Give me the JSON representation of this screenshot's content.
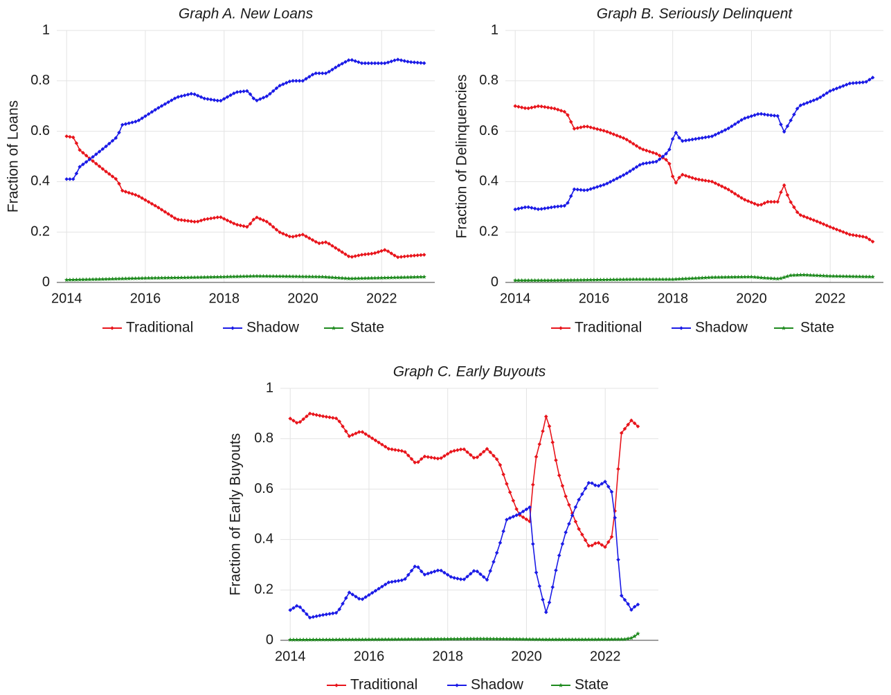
{
  "colors": {
    "Traditional": "#e8141b",
    "Shadow": "#1a1ae6",
    "State": "#1e8a1e"
  },
  "chart_data": [
    {
      "id": "A",
      "type": "line",
      "title": "Graph A. New Loans",
      "xlabel": "",
      "ylabel": "Fraction of Loans",
      "xlim": [
        2013.75,
        2023.35
      ],
      "ylim": [
        0,
        1
      ],
      "xticks": [
        "2014",
        "2016",
        "2018",
        "2020",
        "2022"
      ],
      "yticks": [
        "0",
        "0.2",
        "0.4",
        "0.6",
        "0.8",
        "1"
      ],
      "legend": "bottom",
      "x_start": 2014.0,
      "x_step": 0.0833,
      "series": [
        {
          "name": "Traditional",
          "marker": "diamond",
          "anchors": [
            [
              2014.0,
              0.58
            ],
            [
              2014.2,
              0.575
            ],
            [
              2014.3,
              0.53
            ],
            [
              2014.6,
              0.49
            ],
            [
              2015.0,
              0.44
            ],
            [
              2015.3,
              0.405
            ],
            [
              2015.4,
              0.365
            ],
            [
              2015.8,
              0.345
            ],
            [
              2016.3,
              0.3
            ],
            [
              2016.8,
              0.25
            ],
            [
              2017.3,
              0.24
            ],
            [
              2017.5,
              0.25
            ],
            [
              2017.9,
              0.26
            ],
            [
              2018.3,
              0.23
            ],
            [
              2018.6,
              0.22
            ],
            [
              2018.8,
              0.26
            ],
            [
              2019.1,
              0.24
            ],
            [
              2019.4,
              0.2
            ],
            [
              2019.7,
              0.18
            ],
            [
              2020.0,
              0.19
            ],
            [
              2020.4,
              0.155
            ],
            [
              2020.6,
              0.16
            ],
            [
              2020.9,
              0.13
            ],
            [
              2021.2,
              0.1
            ],
            [
              2021.5,
              0.11
            ],
            [
              2021.8,
              0.115
            ],
            [
              2022.1,
              0.13
            ],
            [
              2022.4,
              0.1
            ],
            [
              2022.7,
              0.105
            ],
            [
              2023.1,
              0.11
            ]
          ]
        },
        {
          "name": "Shadow",
          "marker": "diamond",
          "anchors": [
            [
              2014.0,
              0.41
            ],
            [
              2014.2,
              0.41
            ],
            [
              2014.3,
              0.455
            ],
            [
              2014.6,
              0.49
            ],
            [
              2015.0,
              0.54
            ],
            [
              2015.3,
              0.58
            ],
            [
              2015.4,
              0.625
            ],
            [
              2015.8,
              0.64
            ],
            [
              2016.3,
              0.69
            ],
            [
              2016.8,
              0.735
            ],
            [
              2017.2,
              0.75
            ],
            [
              2017.5,
              0.73
            ],
            [
              2017.9,
              0.72
            ],
            [
              2018.3,
              0.755
            ],
            [
              2018.6,
              0.76
            ],
            [
              2018.8,
              0.72
            ],
            [
              2019.1,
              0.74
            ],
            [
              2019.4,
              0.78
            ],
            [
              2019.7,
              0.8
            ],
            [
              2020.0,
              0.8
            ],
            [
              2020.3,
              0.83
            ],
            [
              2020.6,
              0.83
            ],
            [
              2020.9,
              0.86
            ],
            [
              2021.2,
              0.885
            ],
            [
              2021.5,
              0.87
            ],
            [
              2021.8,
              0.87
            ],
            [
              2022.1,
              0.87
            ],
            [
              2022.4,
              0.885
            ],
            [
              2022.7,
              0.875
            ],
            [
              2023.1,
              0.87
            ]
          ]
        },
        {
          "name": "State",
          "marker": "star",
          "anchors": [
            [
              2014.0,
              0.01
            ],
            [
              2015.0,
              0.013
            ],
            [
              2016.0,
              0.017
            ],
            [
              2017.0,
              0.019
            ],
            [
              2018.0,
              0.022
            ],
            [
              2018.8,
              0.025
            ],
            [
              2019.5,
              0.024
            ],
            [
              2020.5,
              0.022
            ],
            [
              2021.2,
              0.015
            ],
            [
              2022.0,
              0.018
            ],
            [
              2023.1,
              0.022
            ]
          ]
        }
      ]
    },
    {
      "id": "B",
      "type": "line",
      "title": "Graph B. Seriously Delinquent",
      "xlabel": "",
      "ylabel": "Fraction of Delinquencies",
      "xlim": [
        2013.75,
        2023.35
      ],
      "ylim": [
        0,
        1
      ],
      "xticks": [
        "2014",
        "2016",
        "2018",
        "2020",
        "2022"
      ],
      "yticks": [
        "0",
        "0.2",
        "0.4",
        "0.6",
        "0.8",
        "1"
      ],
      "legend": "bottom",
      "x_start": 2014.0,
      "x_step": 0.0833,
      "series": [
        {
          "name": "Traditional",
          "marker": "diamond",
          "anchors": [
            [
              2014.0,
              0.7
            ],
            [
              2014.3,
              0.69
            ],
            [
              2014.6,
              0.7
            ],
            [
              2015.0,
              0.69
            ],
            [
              2015.3,
              0.675
            ],
            [
              2015.5,
              0.61
            ],
            [
              2015.8,
              0.62
            ],
            [
              2016.3,
              0.6
            ],
            [
              2016.8,
              0.57
            ],
            [
              2017.2,
              0.53
            ],
            [
              2017.6,
              0.51
            ],
            [
              2017.9,
              0.48
            ],
            [
              2018.0,
              0.42
            ],
            [
              2018.1,
              0.39
            ],
            [
              2018.2,
              0.43
            ],
            [
              2018.6,
              0.41
            ],
            [
              2019.0,
              0.4
            ],
            [
              2019.4,
              0.37
            ],
            [
              2019.8,
              0.33
            ],
            [
              2020.2,
              0.305
            ],
            [
              2020.4,
              0.32
            ],
            [
              2020.7,
              0.32
            ],
            [
              2020.8,
              0.4
            ],
            [
              2020.95,
              0.33
            ],
            [
              2021.2,
              0.27
            ],
            [
              2021.7,
              0.24
            ],
            [
              2022.0,
              0.22
            ],
            [
              2022.5,
              0.19
            ],
            [
              2022.9,
              0.18
            ],
            [
              2023.1,
              0.16
            ]
          ]
        },
        {
          "name": "Shadow",
          "marker": "diamond",
          "anchors": [
            [
              2014.0,
              0.29
            ],
            [
              2014.3,
              0.3
            ],
            [
              2014.6,
              0.29
            ],
            [
              2015.0,
              0.3
            ],
            [
              2015.3,
              0.305
            ],
            [
              2015.5,
              0.37
            ],
            [
              2015.8,
              0.365
            ],
            [
              2016.3,
              0.39
            ],
            [
              2016.8,
              0.43
            ],
            [
              2017.2,
              0.47
            ],
            [
              2017.6,
              0.48
            ],
            [
              2017.9,
              0.52
            ],
            [
              2018.0,
              0.57
            ],
            [
              2018.1,
              0.6
            ],
            [
              2018.2,
              0.56
            ],
            [
              2018.6,
              0.57
            ],
            [
              2019.0,
              0.58
            ],
            [
              2019.4,
              0.61
            ],
            [
              2019.8,
              0.65
            ],
            [
              2020.2,
              0.67
            ],
            [
              2020.4,
              0.665
            ],
            [
              2020.7,
              0.66
            ],
            [
              2020.8,
              0.59
            ],
            [
              2020.95,
              0.63
            ],
            [
              2021.2,
              0.7
            ],
            [
              2021.7,
              0.73
            ],
            [
              2022.0,
              0.76
            ],
            [
              2022.5,
              0.79
            ],
            [
              2022.9,
              0.795
            ],
            [
              2023.1,
              0.815
            ]
          ]
        },
        {
          "name": "State",
          "marker": "star",
          "anchors": [
            [
              2014.0,
              0.008
            ],
            [
              2015.0,
              0.008
            ],
            [
              2016.0,
              0.01
            ],
            [
              2017.0,
              0.012
            ],
            [
              2018.0,
              0.012
            ],
            [
              2019.0,
              0.02
            ],
            [
              2020.0,
              0.022
            ],
            [
              2020.3,
              0.018
            ],
            [
              2020.7,
              0.014
            ],
            [
              2021.0,
              0.028
            ],
            [
              2021.3,
              0.03
            ],
            [
              2022.0,
              0.025
            ],
            [
              2023.1,
              0.022
            ]
          ]
        }
      ]
    },
    {
      "id": "C",
      "type": "line",
      "title": "Graph C. Early Buyouts",
      "xlabel": "",
      "ylabel": "Fraction of Early Buyouts",
      "xlim": [
        2013.75,
        2023.35
      ],
      "ylim": [
        0,
        1
      ],
      "xticks": [
        "2014",
        "2016",
        "2018",
        "2020",
        "2022"
      ],
      "yticks": [
        "0",
        "0.2",
        "0.4",
        "0.6",
        "0.8",
        "1"
      ],
      "legend": "bottom",
      "x_start": 2014.0,
      "x_step": 0.0833,
      "series": [
        {
          "name": "Traditional",
          "marker": "diamond",
          "anchors": [
            [
              2014.0,
              0.88
            ],
            [
              2014.2,
              0.86
            ],
            [
              2014.5,
              0.9
            ],
            [
              2014.8,
              0.89
            ],
            [
              2015.2,
              0.88
            ],
            [
              2015.5,
              0.81
            ],
            [
              2015.8,
              0.83
            ],
            [
              2016.2,
              0.79
            ],
            [
              2016.5,
              0.76
            ],
            [
              2016.9,
              0.75
            ],
            [
              2017.2,
              0.7
            ],
            [
              2017.4,
              0.73
            ],
            [
              2017.8,
              0.72
            ],
            [
              2018.1,
              0.75
            ],
            [
              2018.4,
              0.76
            ],
            [
              2018.7,
              0.72
            ],
            [
              2019.0,
              0.76
            ],
            [
              2019.3,
              0.71
            ],
            [
              2019.5,
              0.62
            ],
            [
              2019.8,
              0.5
            ],
            [
              2020.1,
              0.47
            ],
            [
              2020.2,
              0.7
            ],
            [
              2020.4,
              0.82
            ],
            [
              2020.5,
              0.89
            ],
            [
              2020.6,
              0.84
            ],
            [
              2020.8,
              0.67
            ],
            [
              2021.0,
              0.57
            ],
            [
              2021.3,
              0.45
            ],
            [
              2021.6,
              0.37
            ],
            [
              2021.8,
              0.39
            ],
            [
              2022.0,
              0.37
            ],
            [
              2022.2,
              0.42
            ],
            [
              2022.4,
              0.82
            ],
            [
              2022.6,
              0.86
            ],
            [
              2022.7,
              0.88
            ],
            [
              2022.8,
              0.84
            ],
            [
              2022.9,
              0.87
            ]
          ]
        },
        {
          "name": "Shadow",
          "marker": "diamond",
          "anchors": [
            [
              2014.0,
              0.12
            ],
            [
              2014.2,
              0.14
            ],
            [
              2014.5,
              0.09
            ],
            [
              2014.8,
              0.1
            ],
            [
              2015.2,
              0.11
            ],
            [
              2015.5,
              0.19
            ],
            [
              2015.8,
              0.16
            ],
            [
              2016.2,
              0.2
            ],
            [
              2016.5,
              0.23
            ],
            [
              2016.9,
              0.24
            ],
            [
              2017.2,
              0.3
            ],
            [
              2017.4,
              0.26
            ],
            [
              2017.8,
              0.28
            ],
            [
              2018.1,
              0.25
            ],
            [
              2018.4,
              0.24
            ],
            [
              2018.7,
              0.28
            ],
            [
              2019.0,
              0.24
            ],
            [
              2019.3,
              0.37
            ],
            [
              2019.5,
              0.48
            ],
            [
              2019.8,
              0.5
            ],
            [
              2020.1,
              0.53
            ],
            [
              2020.2,
              0.3
            ],
            [
              2020.4,
              0.17
            ],
            [
              2020.5,
              0.11
            ],
            [
              2020.6,
              0.16
            ],
            [
              2020.8,
              0.32
            ],
            [
              2021.0,
              0.43
            ],
            [
              2021.3,
              0.55
            ],
            [
              2021.6,
              0.63
            ],
            [
              2021.8,
              0.61
            ],
            [
              2022.0,
              0.63
            ],
            [
              2022.2,
              0.58
            ],
            [
              2022.4,
              0.18
            ],
            [
              2022.6,
              0.14
            ],
            [
              2022.7,
              0.11
            ],
            [
              2022.8,
              0.16
            ],
            [
              2022.9,
              0.1
            ]
          ]
        },
        {
          "name": "State",
          "marker": "star",
          "anchors": [
            [
              2014.0,
              0.002
            ],
            [
              2016.0,
              0.003
            ],
            [
              2017.0,
              0.004
            ],
            [
              2018.0,
              0.005
            ],
            [
              2018.8,
              0.006
            ],
            [
              2019.5,
              0.005
            ],
            [
              2020.5,
              0.003
            ],
            [
              2021.5,
              0.003
            ],
            [
              2022.5,
              0.004
            ],
            [
              2022.7,
              0.01
            ],
            [
              2022.9,
              0.035
            ]
          ]
        }
      ]
    }
  ]
}
